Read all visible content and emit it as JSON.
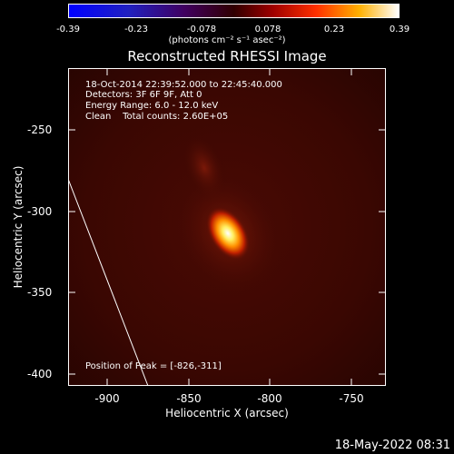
{
  "colorbar": {
    "ticks": [
      "-0.39",
      "-0.23",
      "-0.078",
      "0.078",
      "0.23",
      "0.39"
    ],
    "units": "(photons cm⁻² s⁻¹ asec⁻²)"
  },
  "title": "Reconstructed RHESSI Image",
  "info": {
    "line1": "18-Oct-2014 22:39:52.000 to 22:45:40.000",
    "line2": "Detectors: 3F 6F 9F, Att 0",
    "line3": "Energy Range: 6.0 - 12.0 keV",
    "line4": "Clean    Total counts: 2.60E+05",
    "peak": "Position of Peak = [-826,-311]"
  },
  "axes": {
    "xlabel": "Heliocentric X (arcsec)",
    "ylabel": "Heliocentric Y (arcsec)",
    "xticks": [
      "-900",
      "-850",
      "-800",
      "-750"
    ],
    "yticks": [
      "-250",
      "-300",
      "-350",
      "-400"
    ]
  },
  "timestamp": "18-May-2022 08:31",
  "colors": {
    "background": "#000000",
    "axis": "#ffffff"
  }
}
